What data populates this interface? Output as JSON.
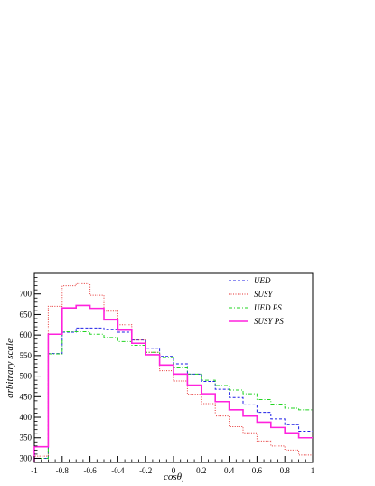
{
  "chart_data": {
    "type": "line",
    "title": "",
    "xlabel": "cosθ",
    "xlabel_subscript": "l",
    "ylabel": "arbitrary scale",
    "xlim": [
      -1,
      1
    ],
    "ylim": [
      290,
      750
    ],
    "grid": false,
    "legend_placement": "top-right",
    "x_ticks": [
      -1,
      -0.8,
      -0.6,
      -0.4,
      -0.2,
      0,
      0.2,
      0.4,
      0.6,
      0.8,
      1
    ],
    "x_tick_labels": [
      "-1",
      "-0.8",
      "-0.6",
      "-0.4",
      "-0.2",
      "0",
      "0.2",
      "0.4",
      "0.6",
      "0.8",
      "1"
    ],
    "y_ticks": [
      300,
      350,
      400,
      450,
      500,
      550,
      600,
      650,
      700
    ],
    "y_tick_labels": [
      "300",
      "350",
      "400",
      "450",
      "500",
      "550",
      "600",
      "650",
      "700"
    ],
    "bin_edges": [
      -1,
      -0.9,
      -0.8,
      -0.7,
      -0.6,
      -0.5,
      -0.4,
      -0.3,
      -0.2,
      -0.1,
      0,
      0.1,
      0.2,
      0.3,
      0.4,
      0.5,
      0.6,
      0.7,
      0.8,
      0.9,
      1
    ],
    "series": [
      {
        "name": "UED",
        "color": "#1e1ee6",
        "dash": "3,2",
        "width": 1,
        "values": [
          300,
          555,
          607,
          617,
          617,
          613,
          607,
          588,
          568,
          548,
          530,
          505,
          487,
          468,
          448,
          430,
          412,
          396,
          382,
          366
        ]
      },
      {
        "name": "SUSY",
        "color": "#e63232",
        "dash": "1,1.5",
        "width": 1,
        "values": [
          305,
          670,
          720,
          725,
          697,
          658,
          625,
          588,
          558,
          513,
          488,
          456,
          433,
          403,
          377,
          362,
          342,
          330,
          320,
          308
        ]
      },
      {
        "name": "UED PS",
        "color": "#22d422",
        "dash": "4,2,1,2",
        "width": 1,
        "values": [
          300,
          554,
          608,
          608,
          602,
          594,
          584,
          575,
          558,
          545,
          520,
          505,
          490,
          477,
          466,
          457,
          443,
          432,
          422,
          418
        ]
      },
      {
        "name": "SUSY PS",
        "color": "#ff22dd",
        "dash": "",
        "width": 1.6,
        "values": [
          328,
          602,
          666,
          672,
          665,
          637,
          612,
          580,
          552,
          527,
          505,
          478,
          457,
          438,
          418,
          403,
          388,
          375,
          362,
          350
        ]
      }
    ]
  }
}
